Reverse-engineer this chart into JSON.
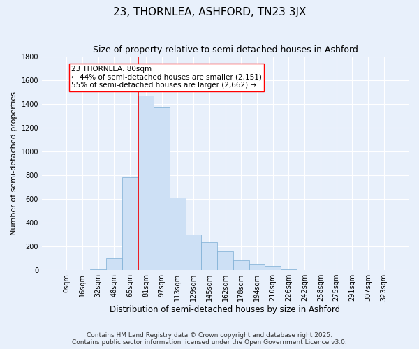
{
  "title": "23, THORNLEA, ASHFORD, TN23 3JX",
  "subtitle": "Size of property relative to semi-detached houses in Ashford",
  "xlabel": "Distribution of semi-detached houses by size in Ashford",
  "ylabel": "Number of semi-detached properties",
  "bar_color": "#cde0f5",
  "bar_edge_color": "#7aadd4",
  "background_color": "#e8f0fb",
  "grid_color": "#ffffff",
  "categories": [
    "0sqm",
    "16sqm",
    "32sqm",
    "48sqm",
    "65sqm",
    "81sqm",
    "97sqm",
    "113sqm",
    "129sqm",
    "145sqm",
    "162sqm",
    "178sqm",
    "194sqm",
    "210sqm",
    "226sqm",
    "242sqm",
    "258sqm",
    "275sqm",
    "291sqm",
    "307sqm",
    "323sqm"
  ],
  "values": [
    0,
    2,
    5,
    100,
    780,
    1470,
    1370,
    610,
    300,
    235,
    160,
    85,
    55,
    35,
    5,
    2,
    0,
    0,
    0,
    0,
    0
  ],
  "ylim": [
    0,
    1800
  ],
  "yticks": [
    0,
    200,
    400,
    600,
    800,
    1000,
    1200,
    1400,
    1600,
    1800
  ],
  "vline_idx": 5,
  "annotation_title": "23 THORNLEA: 80sqm",
  "annotation_line1": "← 44% of semi-detached houses are smaller (2,151)",
  "annotation_line2": "55% of semi-detached houses are larger (2,662) →",
  "footnote1": "Contains HM Land Registry data © Crown copyright and database right 2025.",
  "footnote2": "Contains public sector information licensed under the Open Government Licence v3.0.",
  "title_fontsize": 11,
  "subtitle_fontsize": 9,
  "xlabel_fontsize": 8.5,
  "ylabel_fontsize": 8,
  "tick_fontsize": 7,
  "annot_fontsize": 7.5,
  "footnote_fontsize": 6.5
}
